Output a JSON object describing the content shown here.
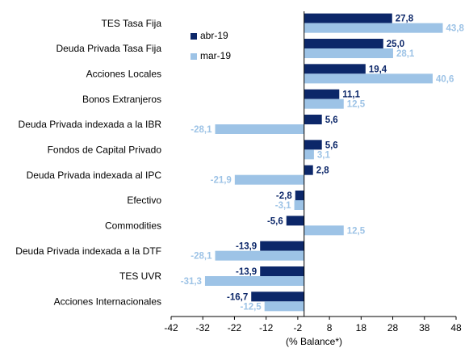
{
  "chart_data": {
    "type": "barh",
    "xlabel": "(% Balance*)",
    "categories": [
      "TES Tasa Fija",
      "Deuda Privada Tasa Fija",
      "Acciones Locales",
      "Bonos Extranjeros",
      "Deuda Privada indexada a la IBR",
      "Fondos de Capital Privado",
      "Deuda Privada indexada al IPC",
      "Efectivo",
      "Commodities",
      "Deuda Privada indexada a la DTF",
      "TES UVR",
      "Acciones Internacionales"
    ],
    "series": [
      {
        "name": "abr-19",
        "color": "#0c2769",
        "values": [
          27.8,
          25.0,
          19.4,
          11.1,
          5.6,
          5.6,
          2.8,
          -2.8,
          -5.6,
          -13.9,
          -13.9,
          -16.7
        ],
        "value_labels": [
          "27,8",
          "25,0",
          "19,4",
          "11,1",
          "5,6",
          "5,6",
          "2,8",
          "-2,8",
          "-5,6",
          "-13,9",
          "-13,9",
          "-16,7"
        ]
      },
      {
        "name": "mar-19",
        "color": "#9dc3e6",
        "values": [
          43.8,
          28.1,
          40.6,
          12.5,
          -28.1,
          3.1,
          -21.9,
          -3.1,
          12.5,
          -28.1,
          -31.3,
          -12.5
        ],
        "value_labels": [
          "43,8",
          "28,1",
          "40,6",
          "12,5",
          "-28,1",
          "3,1",
          "-21,9",
          "-3,1",
          "12,5",
          "-28,1",
          "-31,3",
          "-12,5"
        ]
      }
    ],
    "xlim": [
      -42,
      48
    ],
    "xticks": [
      -42,
      -32,
      -22,
      -12,
      -2,
      8,
      18,
      28,
      38,
      48
    ],
    "legend": "upper left"
  }
}
